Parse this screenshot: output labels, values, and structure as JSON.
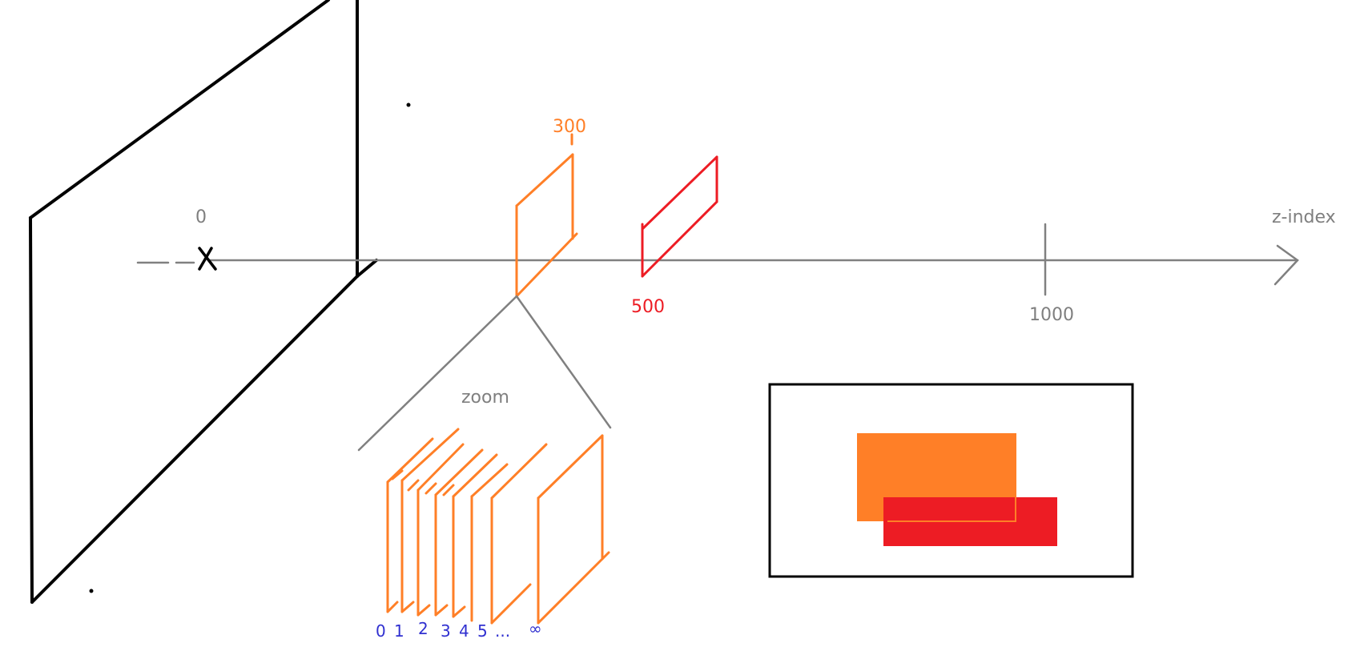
{
  "colors": {
    "axis": "#808080",
    "screen": "#000000",
    "orange": "#ff7f27",
    "red": "#ed1c24",
    "blue": "#3030d0",
    "label_gray": "#7f7f7f"
  },
  "axis": {
    "name": "z-index",
    "origin_label": "0",
    "tick_label": "1000"
  },
  "planes": {
    "orange_label": "300",
    "red_label": "500"
  },
  "zoom": {
    "label": "zoom",
    "sublayer_labels": [
      "0",
      "1",
      "2",
      "3",
      "4",
      "5",
      "...",
      "∞"
    ]
  },
  "result_preview": {
    "rects": [
      "orange",
      "red"
    ]
  }
}
